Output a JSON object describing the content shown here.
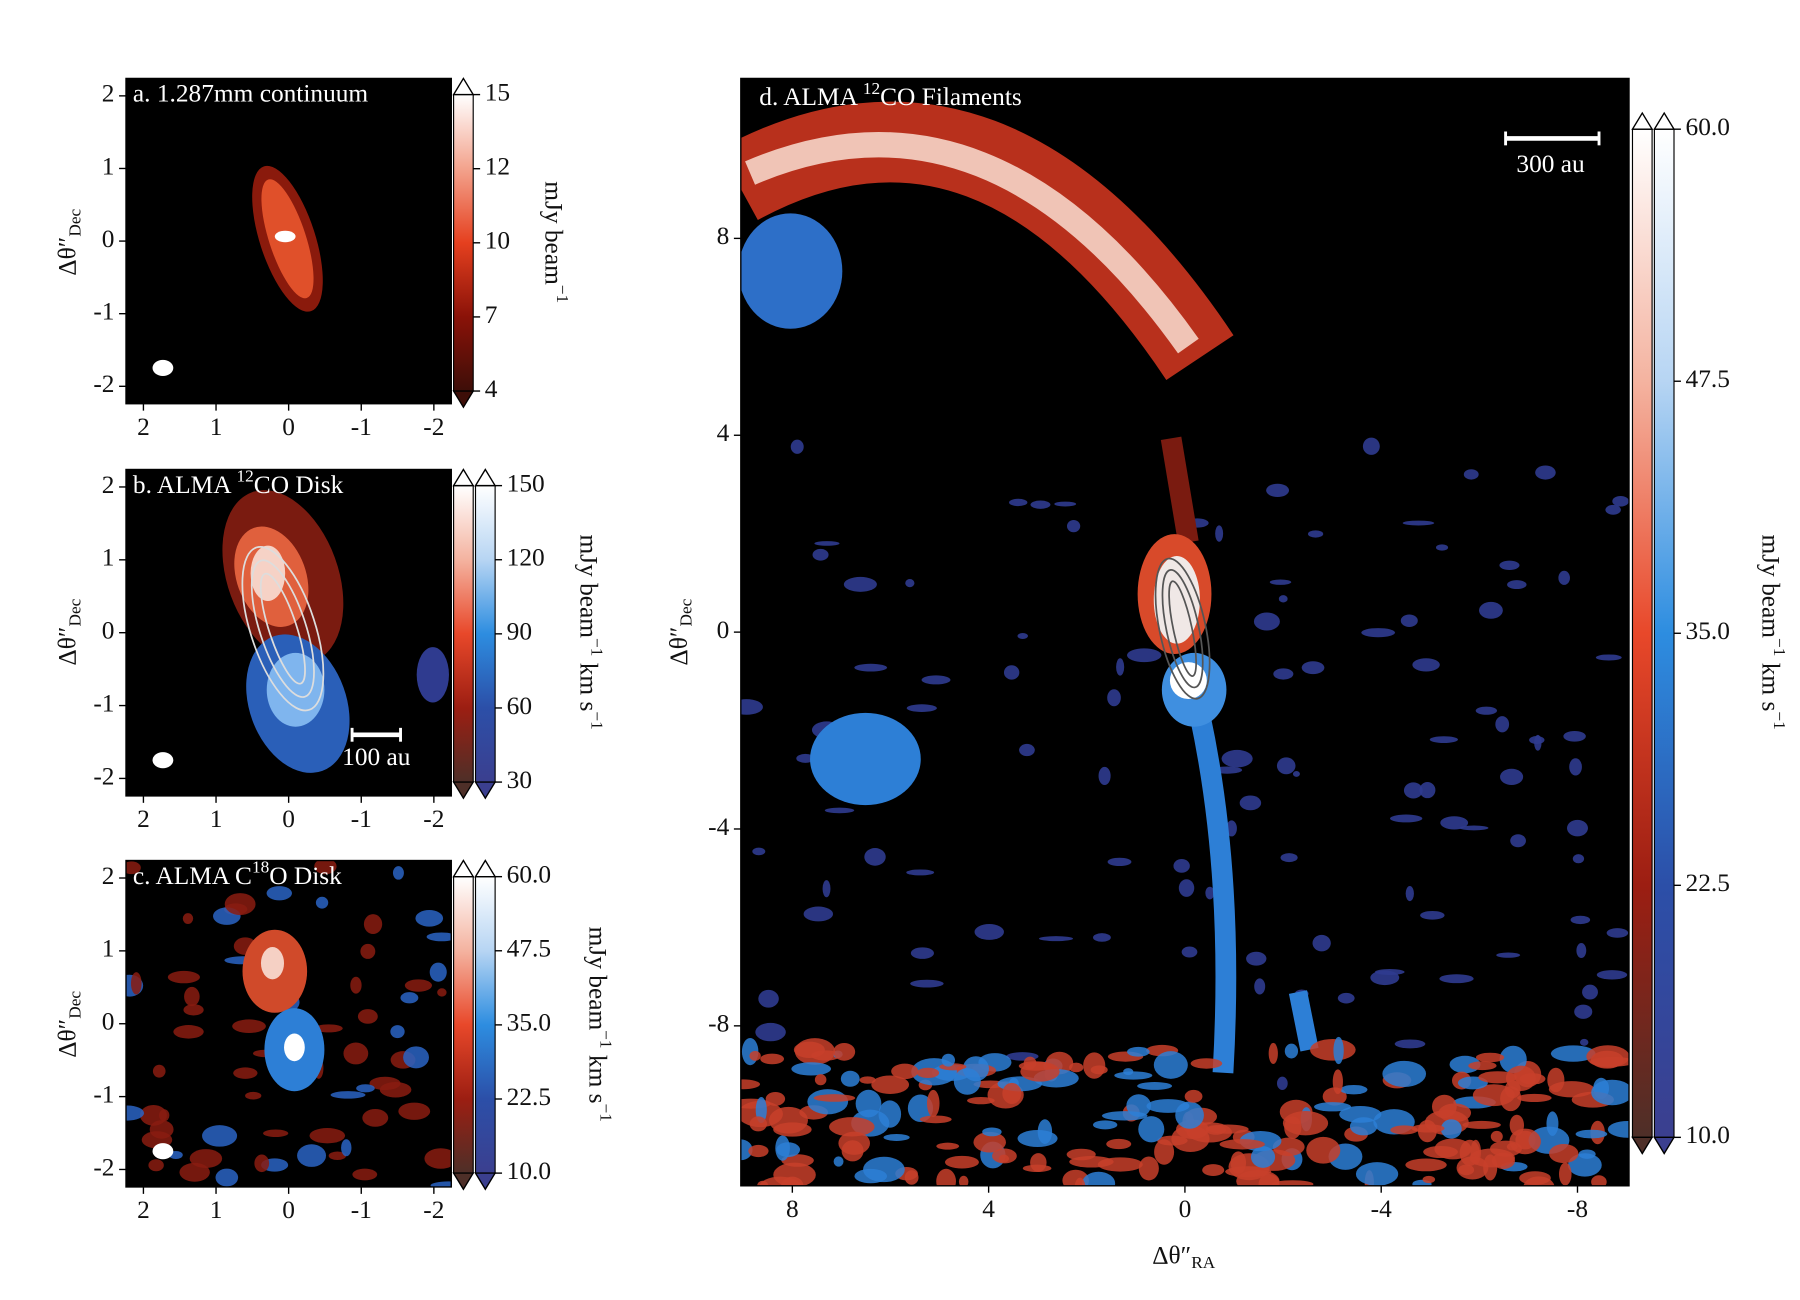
{
  "chart_data": [
    {
      "type": "image",
      "title": [
        {
          "text": "a. 1.287mm continuum"
        }
      ],
      "ylabel": {
        "text": "Δθ″",
        "sub": "Dec"
      },
      "xlim": [
        2.24,
        -2.24
      ],
      "ylim": [
        -2.24,
        2.24
      ],
      "xticks": [
        2,
        1,
        0,
        -1,
        -2
      ],
      "yticks": [
        -2,
        -1,
        0,
        1,
        2
      ],
      "colorbar": {
        "label": [
          {
            "text": "mJy beam"
          },
          {
            "text": "−1",
            "sup": true
          }
        ],
        "lim": [
          4,
          15
        ],
        "ticks": [
          4,
          {
            "value": 6.75,
            "label": "7"
          },
          {
            "value": 9.5,
            "label": "10"
          },
          {
            "value": 12.25,
            "label": "12"
          },
          15
        ],
        "colormaps": [
          [
            "#ffffff",
            "#f3a38d",
            "#e5401f",
            "#8a1208",
            "#3d0e08"
          ]
        ]
      }
    },
    {
      "type": "image",
      "title": [
        {
          "text": "b. ALMA "
        },
        {
          "text": "12",
          "sup": true
        },
        {
          "text": "CO Disk"
        }
      ],
      "ylabel": {
        "text": "Δθ″",
        "sub": "Dec"
      },
      "xlim": [
        2.24,
        -2.24
      ],
      "ylim": [
        -2.24,
        2.24
      ],
      "xticks": [
        2,
        1,
        0,
        -1,
        -2
      ],
      "yticks": [
        -2,
        -1,
        0,
        1,
        2
      ],
      "scalebar": "100 au",
      "colorbar": {
        "label": [
          {
            "text": "mJy beam"
          },
          {
            "text": "−1",
            "sup": true
          },
          {
            "text": " km s"
          },
          {
            "text": "−1",
            "sup": true
          }
        ],
        "lim": [
          30,
          150
        ],
        "ticks": [
          30,
          60,
          90,
          120,
          150
        ],
        "colormaps": [
          [
            "#ffffff",
            "#f4b3a0",
            "#e8482a",
            "#9c1e12",
            "#4e2f28"
          ],
          [
            "#ffffff",
            "#b7d5f3",
            "#2d8de0",
            "#2c4fa8",
            "#3b3f8f"
          ]
        ]
      }
    },
    {
      "type": "image",
      "title": [
        {
          "text": "c. ALMA C"
        },
        {
          "text": "18",
          "sup": true
        },
        {
          "text": "O Disk"
        }
      ],
      "ylabel": {
        "text": "Δθ″",
        "sub": "Dec"
      },
      "xlim": [
        2.24,
        -2.24
      ],
      "ylim": [
        -2.24,
        2.24
      ],
      "xticks": [
        2,
        1,
        0,
        -1,
        -2
      ],
      "yticks": [
        -2,
        -1,
        0,
        1,
        2
      ],
      "colorbar": {
        "label": [
          {
            "text": "mJy beam"
          },
          {
            "text": "−1",
            "sup": true
          },
          {
            "text": " km s"
          },
          {
            "text": "−1",
            "sup": true
          }
        ],
        "lim": [
          10,
          60
        ],
        "ticks": [
          {
            "value": 10,
            "label": "10.0"
          },
          {
            "value": 22.5,
            "label": "22.5"
          },
          {
            "value": 35,
            "label": "35.0"
          },
          {
            "value": 47.5,
            "label": "47.5"
          },
          {
            "value": 60,
            "label": "60.0"
          }
        ],
        "colormaps": [
          [
            "#ffffff",
            "#f4b3a0",
            "#e8482a",
            "#9c1e12",
            "#4e2f28"
          ],
          [
            "#ffffff",
            "#b7d5f3",
            "#2d8de0",
            "#2c4fa8",
            "#3b3f8f"
          ]
        ]
      }
    },
    {
      "type": "image",
      "title": [
        {
          "text": "d. ALMA "
        },
        {
          "text": "12",
          "sup": true
        },
        {
          "text": "CO Filaments"
        }
      ],
      "xlabel": {
        "text": "Δθ″",
        "sub": "RA"
      },
      "ylabel": {
        "text": "Δθ″",
        "sub": "Dec"
      },
      "xlim": [
        9.05,
        -9.05
      ],
      "ylim": [
        -11.25,
        11.25
      ],
      "xticks": [
        8,
        4,
        0,
        -4,
        -8
      ],
      "yticks": [
        -8,
        -4,
        0,
        4,
        8
      ],
      "scalebar": "300 au",
      "colorbar": {
        "label": [
          {
            "text": "mJy beam"
          },
          {
            "text": "−1",
            "sup": true
          },
          {
            "text": " km s"
          },
          {
            "text": "−1",
            "sup": true
          }
        ],
        "lim": [
          10,
          60
        ],
        "ticks": [
          {
            "value": 10,
            "label": "10.0"
          },
          {
            "value": 22.5,
            "label": "22.5"
          },
          {
            "value": 35,
            "label": "35.0"
          },
          {
            "value": 47.5,
            "label": "47.5"
          },
          {
            "value": 60,
            "label": "60.0"
          }
        ],
        "colormaps": [
          [
            "#ffffff",
            "#f4b3a0",
            "#e8482a",
            "#9c1e12",
            "#4e2f28"
          ],
          [
            "#ffffff",
            "#b7d5f3",
            "#2d8de0",
            "#2c4fa8",
            "#3b3f8f"
          ]
        ]
      }
    }
  ]
}
